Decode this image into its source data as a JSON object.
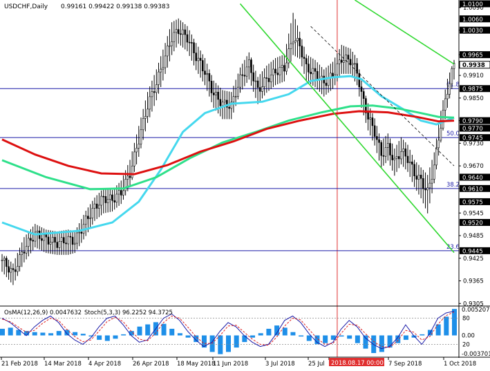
{
  "header": {
    "symbol": "USDCHF,Daily",
    "ohlc": "0.99161 0.99422 0.99138 0.99383"
  },
  "colors": {
    "background": "#ffffff",
    "axis_text": "#000000",
    "bull_bear_candle": "#000000",
    "ma_fast": "#45d8ee",
    "ma_mid": "#2ee08a",
    "ma_slow": "#dd1010",
    "channel": "#2fd82f",
    "trend_dashed": "#000000",
    "fib_level": "#1a1aa8",
    "vertical_marker": "#e03030",
    "price_box": "#000000",
    "osma_bar": "#1e8fe8",
    "stoch_main": "#1a1aa8",
    "stoch_signal": "#e02020"
  },
  "chart_data": [
    {
      "type": "candlestick",
      "title": "USDCHF,Daily",
      "ylim": [
        0.93,
        1.011
      ],
      "y_ticks": [
        "1.0090",
        "1.0030",
        "0.9965",
        "0.9910",
        "0.9850",
        "0.9790",
        "0.9730",
        "0.9670",
        "0.9610",
        "0.9545",
        "0.9485",
        "0.9425",
        "0.9365",
        "0.9305"
      ],
      "y_highlight": [
        {
          "label": "1.0100",
          "value": 1.01,
          "style": "box"
        },
        {
          "label": "1.0060",
          "value": 1.006,
          "style": "box"
        },
        {
          "label": "1.0030",
          "value": 1.003,
          "style": "box"
        },
        {
          "label": "0.9965",
          "value": 0.9965,
          "style": "box"
        },
        {
          "label": "0.9938",
          "value": 0.99383,
          "style": "current"
        },
        {
          "label": "0.9875",
          "value": 0.9875,
          "style": "box"
        },
        {
          "label": "0.9790",
          "value": 0.979,
          "style": "box"
        },
        {
          "label": "0.9770",
          "value": 0.977,
          "style": "box"
        },
        {
          "label": "0.9745",
          "value": 0.9745,
          "style": "box"
        },
        {
          "label": "0.9640",
          "value": 0.964,
          "style": "box"
        },
        {
          "label": "0.9610",
          "value": 0.961,
          "style": "box"
        },
        {
          "label": "0.9575",
          "value": 0.9575,
          "style": "box"
        },
        {
          "label": "0.9520",
          "value": 0.952,
          "style": "box"
        },
        {
          "label": "0.9445",
          "value": 0.9445,
          "style": "box"
        }
      ],
      "x_labels": [
        "21 Feb 2018",
        "14 Mar 2018",
        "4 Apr 2018",
        "26 Apr 2018",
        "18 May 2018",
        "11 Jun 2018",
        "3 Jul 2018",
        "25 Jul",
        "2018.08.17 00:00",
        "7 Sep 2018",
        "1 Oct 2018"
      ],
      "marker_label": "2018.08.17 00:00",
      "fib_levels": [
        {
          "label": "61.8",
          "value": 0.9875
        },
        {
          "label": "50.0",
          "value": 0.9745
        },
        {
          "label": "38.2",
          "value": 0.961
        },
        {
          "label": "23.6",
          "value": 0.9445
        }
      ],
      "series": [
        {
          "name": "",
          "role": "ma_fast",
          "values": [
            [
              0,
              0.952
            ],
            [
              15,
              0.9488
            ],
            [
              35,
              0.9498
            ],
            [
              50,
              0.952
            ],
            [
              62,
              0.9575
            ],
            [
              72,
              0.966
            ],
            [
              82,
              0.976
            ],
            [
              92,
              0.981
            ],
            [
              104,
              0.9835
            ],
            [
              118,
              0.984
            ],
            [
              130,
              0.986
            ],
            [
              140,
              0.9895
            ],
            [
              150,
              0.9905
            ],
            [
              158,
              0.9908
            ],
            [
              163,
              0.99
            ],
            [
              172,
              0.9855
            ],
            [
              182,
              0.982
            ],
            [
              190,
              0.979
            ],
            [
              197,
              0.978
            ],
            [
              205,
              0.9798
            ]
          ]
        },
        {
          "name": "",
          "role": "ma_mid",
          "values": [
            [
              0,
              0.9685
            ],
            [
              20,
              0.964
            ],
            [
              40,
              0.9608
            ],
            [
              55,
              0.961
            ],
            [
              70,
              0.964
            ],
            [
              85,
              0.969
            ],
            [
              100,
              0.9732
            ],
            [
              115,
              0.976
            ],
            [
              130,
              0.979
            ],
            [
              145,
              0.9812
            ],
            [
              158,
              0.9828
            ],
            [
              168,
              0.983
            ],
            [
              180,
              0.9822
            ],
            [
              190,
              0.981
            ],
            [
              198,
              0.98
            ],
            [
              205,
              0.9798
            ]
          ]
        },
        {
          "name": "",
          "role": "ma_slow",
          "values": [
            [
              0,
              0.974
            ],
            [
              15,
              0.97
            ],
            [
              30,
              0.967
            ],
            [
              45,
              0.965
            ],
            [
              60,
              0.9648
            ],
            [
              75,
              0.9672
            ],
            [
              90,
              0.9708
            ],
            [
              105,
              0.9735
            ],
            [
              120,
              0.9768
            ],
            [
              135,
              0.979
            ],
            [
              150,
              0.9808
            ],
            [
              162,
              0.9815
            ],
            [
              175,
              0.9812
            ],
            [
              188,
              0.98
            ],
            [
              198,
              0.9788
            ],
            [
              205,
              0.979
            ]
          ]
        }
      ],
      "candles_summary": [
        [
          0,
          0.942
        ],
        [
          5,
          0.9385
        ],
        [
          10,
          0.945
        ],
        [
          15,
          0.949
        ],
        [
          20,
          0.9475
        ],
        [
          25,
          0.9465
        ],
        [
          30,
          0.9475
        ],
        [
          33,
          0.947
        ],
        [
          38,
          0.9525
        ],
        [
          42,
          0.956
        ],
        [
          46,
          0.9585
        ],
        [
          50,
          0.958
        ],
        [
          54,
          0.96
        ],
        [
          58,
          0.965
        ],
        [
          62,
          0.974
        ],
        [
          66,
          0.983
        ],
        [
          70,
          0.989
        ],
        [
          74,
          0.996
        ],
        [
          77,
          1.001
        ],
        [
          80,
          1.003
        ],
        [
          84,
          1.001
        ],
        [
          88,
          0.996
        ],
        [
          92,
          0.992
        ],
        [
          96,
          0.986
        ],
        [
          100,
          0.9835
        ],
        [
          104,
          0.983
        ],
        [
          108,
          0.99
        ],
        [
          112,
          0.994
        ],
        [
          116,
          0.987
        ],
        [
          120,
          0.99
        ],
        [
          124,
          0.992
        ],
        [
          128,
          0.993
        ],
        [
          132,
          1.001
        ],
        [
          135,
          0.999
        ],
        [
          138,
          0.993
        ],
        [
          142,
          0.9915
        ],
        [
          146,
          0.989
        ],
        [
          150,
          0.991
        ],
        [
          154,
          0.9955
        ],
        [
          158,
          0.995
        ],
        [
          161,
          0.992
        ],
        [
          163,
          0.986
        ],
        [
          166,
          0.98
        ],
        [
          169,
          0.976
        ],
        [
          172,
          0.97
        ],
        [
          175,
          0.972
        ],
        [
          178,
          0.968
        ],
        [
          181,
          0.971
        ],
        [
          184,
          0.969
        ],
        [
          187,
          0.965
        ],
        [
          190,
          0.963
        ],
        [
          193,
          0.96
        ],
        [
          196,
          0.967
        ],
        [
          199,
          0.978
        ],
        [
          202,
          0.987
        ],
        [
          205,
          0.994
        ]
      ],
      "candles_hl": [
        [
          0,
          0.943,
          0.9395
        ],
        [
          5,
          0.9405,
          0.936
        ],
        [
          10,
          0.9475,
          0.942
        ],
        [
          15,
          0.951,
          0.946
        ],
        [
          20,
          0.9495,
          0.9445
        ],
        [
          25,
          0.949,
          0.944
        ],
        [
          30,
          0.9495,
          0.944
        ],
        [
          33,
          0.949,
          0.9445
        ],
        [
          38,
          0.9545,
          0.949
        ],
        [
          42,
          0.958,
          0.953
        ],
        [
          46,
          0.9605,
          0.955
        ],
        [
          50,
          0.96,
          0.9555
        ],
        [
          54,
          0.9625,
          0.9575
        ],
        [
          58,
          0.968,
          0.962
        ],
        [
          62,
          0.977,
          0.97
        ],
        [
          66,
          0.986,
          0.979
        ],
        [
          70,
          0.992,
          0.985
        ],
        [
          74,
          0.999,
          0.992
        ],
        [
          77,
          1.0045,
          0.997
        ],
        [
          80,
          1.0055,
          1.0
        ],
        [
          84,
          1.0035,
          0.998
        ],
        [
          88,
          0.999,
          0.993
        ],
        [
          92,
          0.995,
          0.989
        ],
        [
          96,
          0.989,
          0.983
        ],
        [
          100,
          0.9865,
          0.98
        ],
        [
          104,
          0.986,
          0.98
        ],
        [
          108,
          0.9925,
          0.987
        ],
        [
          112,
          0.9965,
          0.9905
        ],
        [
          116,
          0.99,
          0.984
        ],
        [
          120,
          0.993,
          0.987
        ],
        [
          124,
          0.995,
          0.989
        ],
        [
          128,
          0.996,
          0.99
        ],
        [
          132,
          1.007,
          0.997
        ],
        [
          135,
          1.002,
          0.996
        ],
        [
          138,
          0.996,
          0.99
        ],
        [
          142,
          0.9945,
          0.9885
        ],
        [
          146,
          0.992,
          0.986
        ],
        [
          150,
          0.994,
          0.988
        ],
        [
          154,
          0.9985,
          0.992
        ],
        [
          158,
          0.9975,
          0.992
        ],
        [
          161,
          0.995,
          0.989
        ],
        [
          163,
          0.989,
          0.983
        ],
        [
          166,
          0.983,
          0.977
        ],
        [
          169,
          0.979,
          0.973
        ],
        [
          172,
          0.973,
          0.967
        ],
        [
          175,
          0.975,
          0.969
        ],
        [
          178,
          0.971,
          0.965
        ],
        [
          181,
          0.974,
          0.968
        ],
        [
          184,
          0.972,
          0.966
        ],
        [
          187,
          0.968,
          0.962
        ],
        [
          190,
          0.966,
          0.959
        ],
        [
          193,
          0.964,
          0.955
        ],
        [
          196,
          0.97,
          0.963
        ],
        [
          199,
          0.981,
          0.974
        ],
        [
          202,
          0.9895,
          0.983
        ],
        [
          205,
          0.9945,
          0.9905
        ]
      ]
    },
    {
      "type": "bar",
      "title": "OsMA(12,26,9) 0.0047632  Stoch(5,3,3) 96.2252 94.3725",
      "osma_label": "OsMA(12,26,9) 0.0047632",
      "stoch_label": "Stoch(5,3,3) 96.2252 94.3725",
      "y_ticks_right": [
        "0.005207",
        "0.00",
        "-0.003701"
      ],
      "stoch_levels": [
        "80",
        "20"
      ],
      "ylim": [
        -0.0037,
        0.0052
      ],
      "osma_values": [
        0.0012,
        0.0014,
        0.001,
        0.0008,
        0.0006,
        0.0005,
        0.0004,
        0.0008,
        0.001,
        0.0006,
        0.0003,
        -0.0002,
        -0.0008,
        -0.001,
        -0.0006,
        0.0002,
        0.0008,
        0.0016,
        0.002,
        0.0024,
        0.0021,
        0.0012,
        0.0004,
        -0.0004,
        -0.0012,
        -0.0022,
        -0.003,
        -0.0034,
        -0.003,
        -0.0022,
        -0.0012,
        -0.0004,
        0.0004,
        0.0012,
        0.0018,
        0.0014,
        0.0006,
        -0.0002,
        -0.001,
        -0.0016,
        -0.0014,
        -0.0008,
        -0.0002,
        -0.0006,
        -0.0014,
        -0.0024,
        -0.0032,
        -0.003,
        -0.0022,
        -0.0014,
        -0.0008,
        -0.0004,
        0.0002,
        0.001,
        0.002,
        0.0034,
        0.0048
      ],
      "stoch_main": [
        80,
        70,
        55,
        40,
        60,
        75,
        85,
        70,
        45,
        30,
        20,
        35,
        60,
        80,
        85,
        65,
        40,
        25,
        30,
        55,
        80,
        90,
        75,
        50,
        30,
        15,
        25,
        50,
        70,
        60,
        40,
        25,
        15,
        20,
        45,
        75,
        85,
        70,
        45,
        25,
        15,
        25,
        55,
        75,
        60,
        35,
        20,
        10,
        15,
        35,
        65,
        40,
        20,
        45,
        80,
        92,
        96
      ],
      "stoch_signal": [
        78,
        72,
        60,
        48,
        52,
        68,
        80,
        75,
        55,
        38,
        26,
        30,
        50,
        72,
        82,
        72,
        50,
        32,
        28,
        45,
        70,
        85,
        80,
        60,
        38,
        22,
        22,
        40,
        62,
        64,
        48,
        32,
        20,
        18,
        36,
        62,
        80,
        76,
        55,
        34,
        20,
        22,
        45,
        66,
        64,
        45,
        27,
        15,
        13,
        28,
        52,
        48,
        30,
        38,
        66,
        86,
        94
      ]
    }
  ]
}
